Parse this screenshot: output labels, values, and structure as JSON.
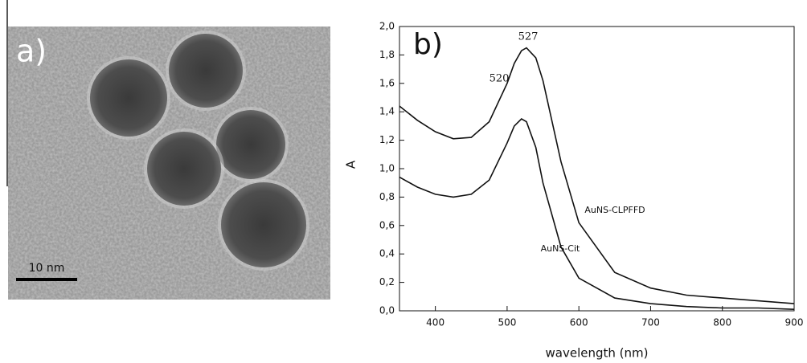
{
  "image_panel": {
    "label": "a)",
    "scale_bar": "10 nm"
  },
  "chart_data": {
    "type": "line",
    "panel_label": "b)",
    "xlabel": "wavelength (nm)",
    "ylabel": "A",
    "x": [
      350,
      375,
      400,
      425,
      450,
      475,
      500,
      510,
      520,
      527,
      540,
      550,
      575,
      600,
      650,
      700,
      750,
      800,
      850,
      900
    ],
    "series": [
      {
        "name": "AuNS-CLPFFD",
        "color": "#111111",
        "values": [
          1.44,
          1.34,
          1.26,
          1.21,
          1.22,
          1.33,
          1.6,
          1.74,
          1.83,
          1.85,
          1.78,
          1.62,
          1.05,
          0.62,
          0.27,
          0.16,
          0.11,
          0.09,
          0.07,
          0.05
        ]
      },
      {
        "name": "AuNS-Cit",
        "color": "#111111",
        "values": [
          0.94,
          0.87,
          0.82,
          0.8,
          0.82,
          0.92,
          1.18,
          1.3,
          1.35,
          1.33,
          1.15,
          0.9,
          0.45,
          0.23,
          0.09,
          0.05,
          0.03,
          0.02,
          0.02,
          0.01
        ]
      }
    ],
    "annotations": [
      "527",
      "520"
    ],
    "xlim": [
      350,
      900
    ],
    "xticks": [
      400,
      500,
      600,
      700,
      800,
      900
    ],
    "ylim": [
      0,
      2.0
    ],
    "yticks": [
      {
        "value": 0,
        "label": "0,0"
      },
      {
        "value": 0.2,
        "label": "0,2"
      },
      {
        "value": 0.4,
        "label": "0,4"
      },
      {
        "value": 0.6,
        "label": "0,6"
      },
      {
        "value": 0.8,
        "label": "0,8"
      },
      {
        "value": 1.0,
        "label": "1,0"
      },
      {
        "value": 1.2,
        "label": "1,2"
      },
      {
        "value": 1.4,
        "label": "1,4"
      },
      {
        "value": 1.6,
        "label": "1,6"
      },
      {
        "value": 1.8,
        "label": "1,8"
      },
      {
        "value": 2.0,
        "label": "2,0"
      }
    ]
  }
}
